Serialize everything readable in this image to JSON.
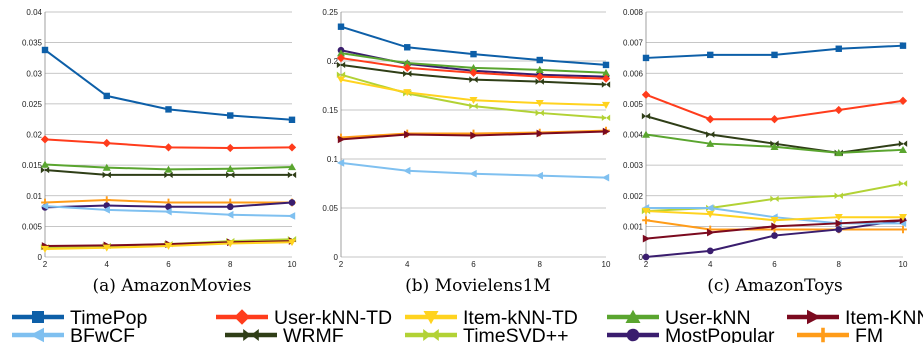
{
  "chart_data": [
    {
      "type": "line",
      "caption": "(a) AmazonMovies",
      "x": [
        2,
        4,
        6,
        8,
        10
      ],
      "ylim": [
        0,
        0.04
      ],
      "yticks": [
        "0",
        "0.005",
        "0.01",
        "0.015",
        "0.02",
        "0.025",
        "0.03",
        "0.035",
        "0.04"
      ],
      "xticks": [
        "2",
        "4",
        "6",
        "8",
        "10"
      ],
      "grid": true,
      "series": [
        {
          "name": "TimePop",
          "values": [
            0.0338,
            0.0263,
            0.0241,
            0.0231,
            0.0224
          ]
        },
        {
          "name": "User-kNN-TD",
          "values": [
            0.0192,
            0.0186,
            0.0179,
            0.0178,
            0.0179
          ]
        },
        {
          "name": "Item-kNN-TD",
          "values": [
            0.0013,
            0.0015,
            0.0018,
            0.0022,
            0.0024
          ]
        },
        {
          "name": "User-kNN",
          "values": [
            0.0151,
            0.0146,
            0.0143,
            0.0144,
            0.0147
          ]
        },
        {
          "name": "Item-KNN",
          "values": [
            0.0018,
            0.0019,
            0.0021,
            0.0024,
            0.0026
          ]
        },
        {
          "name": "BFwCF",
          "values": [
            0.0083,
            0.0077,
            0.0074,
            0.0069,
            0.0067
          ]
        },
        {
          "name": "WRMF",
          "values": [
            0.0142,
            0.0134,
            0.0134,
            0.0134,
            0.0134
          ]
        },
        {
          "name": "TimeSVD++",
          "values": [
            0.0016,
            0.0018,
            0.0021,
            0.0026,
            0.0029
          ]
        },
        {
          "name": "MostPopular",
          "values": [
            0.0081,
            0.0084,
            0.0082,
            0.0082,
            0.0089
          ]
        },
        {
          "name": "FM",
          "values": [
            0.0089,
            0.0093,
            0.0089,
            0.0089,
            0.0089
          ]
        }
      ]
    },
    {
      "type": "line",
      "caption": "(b) Movielens1M",
      "x": [
        2,
        4,
        6,
        8,
        10
      ],
      "ylim": [
        0,
        0.25
      ],
      "yticks": [
        "0",
        "0.05",
        "0.1",
        "0.15",
        "0.2",
        "0.25"
      ],
      "xticks": [
        "2",
        "4",
        "6",
        "8",
        "10"
      ],
      "grid": true,
      "series": [
        {
          "name": "TimePop",
          "values": [
            0.235,
            0.214,
            0.207,
            0.201,
            0.196
          ]
        },
        {
          "name": "User-kNN-TD",
          "values": [
            0.203,
            0.193,
            0.188,
            0.184,
            0.182
          ]
        },
        {
          "name": "Item-kNN-TD",
          "values": [
            0.181,
            0.168,
            0.16,
            0.157,
            0.155
          ]
        },
        {
          "name": "User-kNN",
          "values": [
            0.208,
            0.198,
            0.193,
            0.191,
            0.188
          ]
        },
        {
          "name": "Item-KNN",
          "values": [
            0.12,
            0.125,
            0.124,
            0.126,
            0.128
          ]
        },
        {
          "name": "BFwCF",
          "values": [
            0.096,
            0.088,
            0.085,
            0.083,
            0.081
          ]
        },
        {
          "name": "WRMF",
          "values": [
            0.196,
            0.187,
            0.181,
            0.179,
            0.176
          ]
        },
        {
          "name": "TimeSVD++",
          "values": [
            0.186,
            0.167,
            0.154,
            0.147,
            0.142
          ]
        },
        {
          "name": "MostPopular",
          "values": [
            0.211,
            0.197,
            0.19,
            0.186,
            0.184
          ]
        },
        {
          "name": "FM",
          "values": [
            0.122,
            0.126,
            0.126,
            0.127,
            0.129
          ]
        }
      ]
    },
    {
      "type": "line",
      "caption": "(c) AmazonToys",
      "x": [
        2,
        4,
        6,
        8,
        10
      ],
      "ylim": [
        0,
        0.008
      ],
      "yticks": [
        "0",
        "0.001",
        "0.002",
        "0.003",
        "0.004",
        "0.005",
        "0.006",
        "0.007",
        "0.008"
      ],
      "xticks": [
        "2",
        "4",
        "6",
        "8",
        "10"
      ],
      "grid": true,
      "series": [
        {
          "name": "TimePop",
          "values": [
            0.0065,
            0.0066,
            0.0066,
            0.0068,
            0.0069
          ]
        },
        {
          "name": "User-kNN-TD",
          "values": [
            0.0053,
            0.0045,
            0.0045,
            0.0048,
            0.0051
          ]
        },
        {
          "name": "Item-kNN-TD",
          "values": [
            0.0015,
            0.0014,
            0.0012,
            0.0013,
            0.0013
          ]
        },
        {
          "name": "User-kNN",
          "values": [
            0.004,
            0.0037,
            0.0036,
            0.0034,
            0.0035
          ]
        },
        {
          "name": "Item-KNN",
          "values": [
            0.0006,
            0.0008,
            0.001,
            0.0011,
            0.0012
          ]
        },
        {
          "name": "BFwCF",
          "values": [
            0.0016,
            0.0016,
            0.0013,
            0.0011,
            0.0011
          ]
        },
        {
          "name": "WRMF",
          "values": [
            0.0046,
            0.004,
            0.0037,
            0.0034,
            0.0037
          ]
        },
        {
          "name": "TimeSVD++",
          "values": [
            0.0015,
            0.0016,
            0.0019,
            0.002,
            0.0024
          ]
        },
        {
          "name": "MostPopular",
          "values": [
            0.0,
            0.0002,
            0.0007,
            0.0009,
            0.0012
          ]
        },
        {
          "name": "FM",
          "values": [
            0.0012,
            0.0009,
            0.0009,
            0.0009,
            0.0009
          ]
        }
      ]
    }
  ],
  "legend": {
    "items": [
      {
        "name": "TimePop",
        "color": "#0d5fa8",
        "marker": "square"
      },
      {
        "name": "User-kNN-TD",
        "color": "#ff3c1c",
        "marker": "diamond"
      },
      {
        "name": "Item-kNN-TD",
        "color": "#ffd31f",
        "marker": "triangle-down"
      },
      {
        "name": "User-kNN",
        "color": "#5aa52f",
        "marker": "triangle-up"
      },
      {
        "name": "Item-KNN",
        "color": "#7b0a1f",
        "marker": "triangle-right"
      },
      {
        "name": "BFwCF",
        "color": "#7fc0f0",
        "marker": "triangle-left"
      },
      {
        "name": "WRMF",
        "color": "#2f3e17",
        "marker": "bowtie"
      },
      {
        "name": "TimeSVD++",
        "color": "#b2d235",
        "marker": "bowtie"
      },
      {
        "name": "MostPopular",
        "color": "#3a1d6e",
        "marker": "circle"
      },
      {
        "name": "FM",
        "color": "#ff9c19",
        "marker": "plus"
      }
    ]
  }
}
